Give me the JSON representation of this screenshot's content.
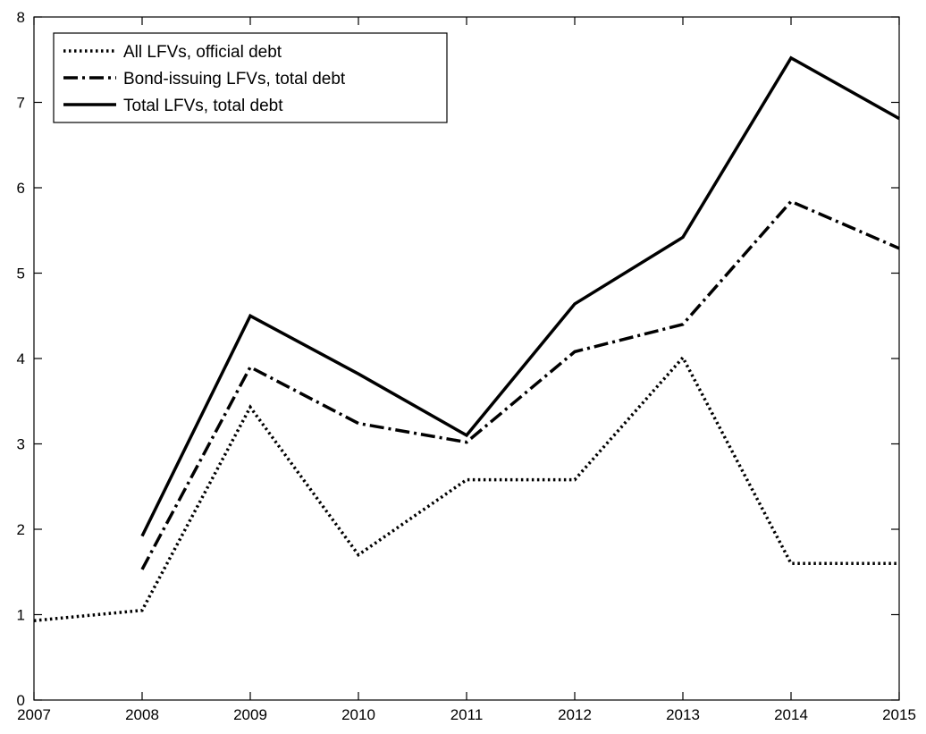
{
  "chart_data": {
    "type": "line",
    "title": "",
    "xlabel": "",
    "ylabel": "",
    "xlim": [
      2007,
      2015
    ],
    "ylim": [
      0,
      8
    ],
    "xticks": [
      "2007",
      "2008",
      "2009",
      "2010",
      "2011",
      "2012",
      "2013",
      "2014",
      "2015"
    ],
    "yticks": [
      "0",
      "1",
      "2",
      "3",
      "4",
      "5",
      "6",
      "7",
      "8"
    ],
    "grid": false,
    "legend_position": "top-left",
    "series": [
      {
        "name": "All LFVs, official debt",
        "style": "dotted",
        "color": "#000000",
        "x": [
          2007,
          2008,
          2009,
          2010,
          2011,
          2012,
          2013,
          2014,
          2015
        ],
        "y": [
          0.93,
          1.05,
          3.43,
          1.7,
          2.58,
          2.58,
          4.01,
          1.6,
          1.6
        ]
      },
      {
        "name": "Bond-issuing LFVs, total debt",
        "style": "dash-dot",
        "color": "#000000",
        "x": [
          2008,
          2009,
          2010,
          2011,
          2012,
          2013,
          2014,
          2015
        ],
        "y": [
          1.53,
          3.9,
          3.24,
          3.02,
          4.08,
          4.4,
          5.84,
          5.29
        ]
      },
      {
        "name": "Total LFVs, total debt",
        "style": "solid",
        "color": "#000000",
        "x": [
          2008,
          2009,
          2010,
          2011,
          2012,
          2013,
          2014,
          2015
        ],
        "y": [
          1.92,
          4.5,
          3.82,
          3.1,
          4.64,
          5.42,
          7.52,
          6.81
        ]
      }
    ]
  }
}
